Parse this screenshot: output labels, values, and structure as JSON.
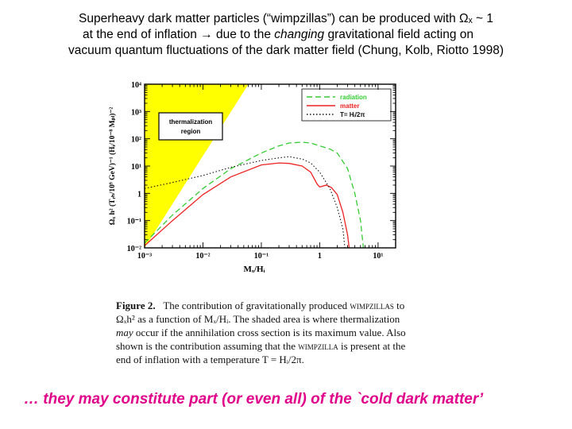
{
  "header": {
    "line1": "Superheavy dark matter particles (“wimpzillas”) can be produced with Ωₓ ~ 1",
    "line2_pre": "at the end of inflation → due to the ",
    "line2_em": "changing",
    "line2_post": " gravitational field acting on",
    "line3": "vacuum  quantum fluctuations of the dark matter field  (Chung, Kolb, Riotto 1998)"
  },
  "chart_data": {
    "type": "line",
    "xlabel": "Mₓ/Hᵢ",
    "ylabel": "Ωₓ h² (Tᵣₕ/10⁹ GeV)⁻¹ (Hᵢ/10⁻⁸ Mₚₗ)⁻²",
    "x_scale": "log",
    "y_scale": "log",
    "xlim": [
      0.001,
      20
    ],
    "ylim": [
      0.01,
      10000
    ],
    "x_ticks": [
      {
        "v": 0.001,
        "label": "10⁻³"
      },
      {
        "v": 0.01,
        "label": "10⁻²"
      },
      {
        "v": 0.1,
        "label": "10⁻¹"
      },
      {
        "v": 1,
        "label": "1"
      },
      {
        "v": 10,
        "label": "10¹"
      }
    ],
    "y_ticks": [
      {
        "v": 0.01,
        "label": "10⁻²"
      },
      {
        "v": 0.1,
        "label": "10⁻¹"
      },
      {
        "v": 1,
        "label": "1"
      },
      {
        "v": 10,
        "label": "10¹"
      },
      {
        "v": 100,
        "label": "10²"
      },
      {
        "v": 1000,
        "label": "10³"
      },
      {
        "v": 10000,
        "label": "10⁴"
      }
    ],
    "shaded_region": {
      "label_line1": "thermalization",
      "label_line2": "region",
      "color": "#ffff00",
      "boundary": [
        {
          "x": 0.001,
          "y": 0.01
        },
        {
          "x": 0.06,
          "y": 10000
        }
      ]
    },
    "legend": {
      "position": "top-right"
    },
    "series": [
      {
        "name": "radiation",
        "color": "#33cc33",
        "style": "dashed",
        "points": [
          [
            0.001,
            0.015
          ],
          [
            0.003,
            0.16
          ],
          [
            0.01,
            1.5
          ],
          [
            0.03,
            8
          ],
          [
            0.1,
            30
          ],
          [
            0.2,
            55
          ],
          [
            0.3,
            70
          ],
          [
            0.5,
            75
          ],
          [
            0.7,
            70
          ],
          [
            1,
            55
          ],
          [
            1.5,
            42
          ],
          [
            2,
            30
          ],
          [
            3,
            8
          ],
          [
            4,
            1
          ],
          [
            5,
            0.1
          ],
          [
            5.6,
            0.01
          ]
        ]
      },
      {
        "name": "matter",
        "color": "#ee2222",
        "style": "solid",
        "points": [
          [
            0.001,
            0.012
          ],
          [
            0.003,
            0.1
          ],
          [
            0.01,
            0.9
          ],
          [
            0.03,
            4
          ],
          [
            0.1,
            11
          ],
          [
            0.2,
            13
          ],
          [
            0.3,
            12.5
          ],
          [
            0.5,
            10
          ],
          [
            0.7,
            6
          ],
          [
            0.9,
            2.2
          ],
          [
            1,
            1.7
          ],
          [
            1.3,
            2
          ],
          [
            1.6,
            1.6
          ],
          [
            2,
            0.9
          ],
          [
            2.5,
            0.2
          ],
          [
            3,
            0.03
          ],
          [
            3.2,
            0.01
          ]
        ]
      },
      {
        "name": "T= Hᵢ/2π",
        "color": "#111111",
        "style": "dotted",
        "points": [
          [
            0.001,
            1.5
          ],
          [
            0.003,
            2.5
          ],
          [
            0.01,
            4.5
          ],
          [
            0.03,
            9
          ],
          [
            0.1,
            16
          ],
          [
            0.2,
            20
          ],
          [
            0.3,
            22
          ],
          [
            0.5,
            18
          ],
          [
            0.7,
            13
          ],
          [
            1,
            6
          ],
          [
            1.5,
            1.5
          ],
          [
            2,
            0.3
          ],
          [
            2.5,
            0.05
          ],
          [
            2.7,
            0.01
          ]
        ]
      }
    ]
  },
  "caption": {
    "fig_label": "Figure 2.",
    "l1_text": "The contribution of gravitationally produced ",
    "l1_sc": "wimpzillas",
    "l1_post": " to",
    "l2": "Ωₓh² as a function of Mₓ/Hᵢ.  The shaded area is where thermalization",
    "l3_em": "may",
    "l3_post": " occur if the annihilation cross section is its maximum value.  Also",
    "l4_pre": "shown is the contribution assuming that the ",
    "l4_sc": "wimpzilla",
    "l4_post": " is present at the",
    "l5": "end of inflation with a temperature T = Hᵢ/2π."
  },
  "footer": {
    "text": "… they may constitute part (or even all) of the `cold dark matter’"
  }
}
